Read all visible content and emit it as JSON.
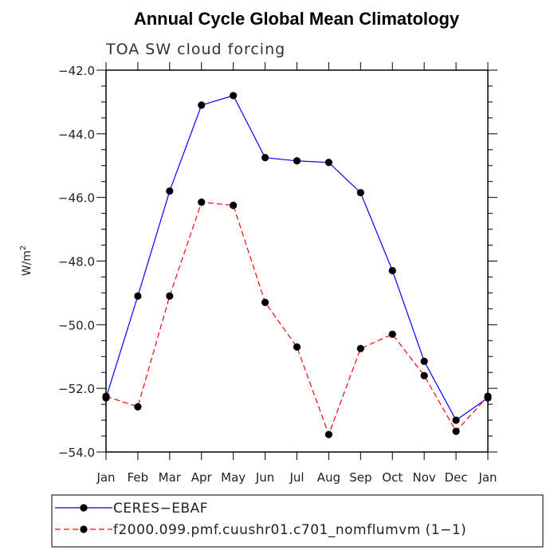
{
  "colors": {
    "series_0": "#0000ff",
    "series_1": "#ff0000",
    "markers": "#000000",
    "frame": "#000000"
  },
  "chart_data": {
    "type": "line",
    "title": "Annual Cycle Global Mean Climatology",
    "subtitle": "TOA SW cloud forcing",
    "ylabel": "W/m",
    "ylabel_superscript": "2",
    "xlabel": "",
    "categories": [
      "Jan",
      "Feb",
      "Mar",
      "Apr",
      "May",
      "Jun",
      "Jul",
      "Aug",
      "Sep",
      "Oct",
      "Nov",
      "Dec",
      "Jan"
    ],
    "ylim": [
      -54.0,
      -42.0
    ],
    "yticks": [
      -54.0,
      -52.0,
      -50.0,
      -48.0,
      -46.0,
      -44.0,
      -42.0
    ],
    "ytick_labels": [
      "−54.0",
      "−52.0",
      "−50.0",
      "−48.0",
      "−46.0",
      "−44.0",
      "−42.0"
    ],
    "y_minor_step": 0.5,
    "series": [
      {
        "name": "CERES−EBAF",
        "style": "solid",
        "values": [
          -52.3,
          -49.1,
          -45.8,
          -43.1,
          -42.8,
          -44.75,
          -44.85,
          -44.9,
          -45.85,
          -48.3,
          -51.15,
          -53.0,
          -52.3
        ]
      },
      {
        "name": "f2000.099.pmf.cuushr01.c701_nomflumvm (1−1)",
        "style": "dashed",
        "values": [
          -52.25,
          -52.58,
          -49.1,
          -46.15,
          -46.25,
          -49.3,
          -50.7,
          -53.45,
          -50.75,
          -50.3,
          -51.6,
          -53.35,
          -52.25
        ]
      }
    ],
    "legend_position": "bottom-left, below plot",
    "grid": false
  }
}
